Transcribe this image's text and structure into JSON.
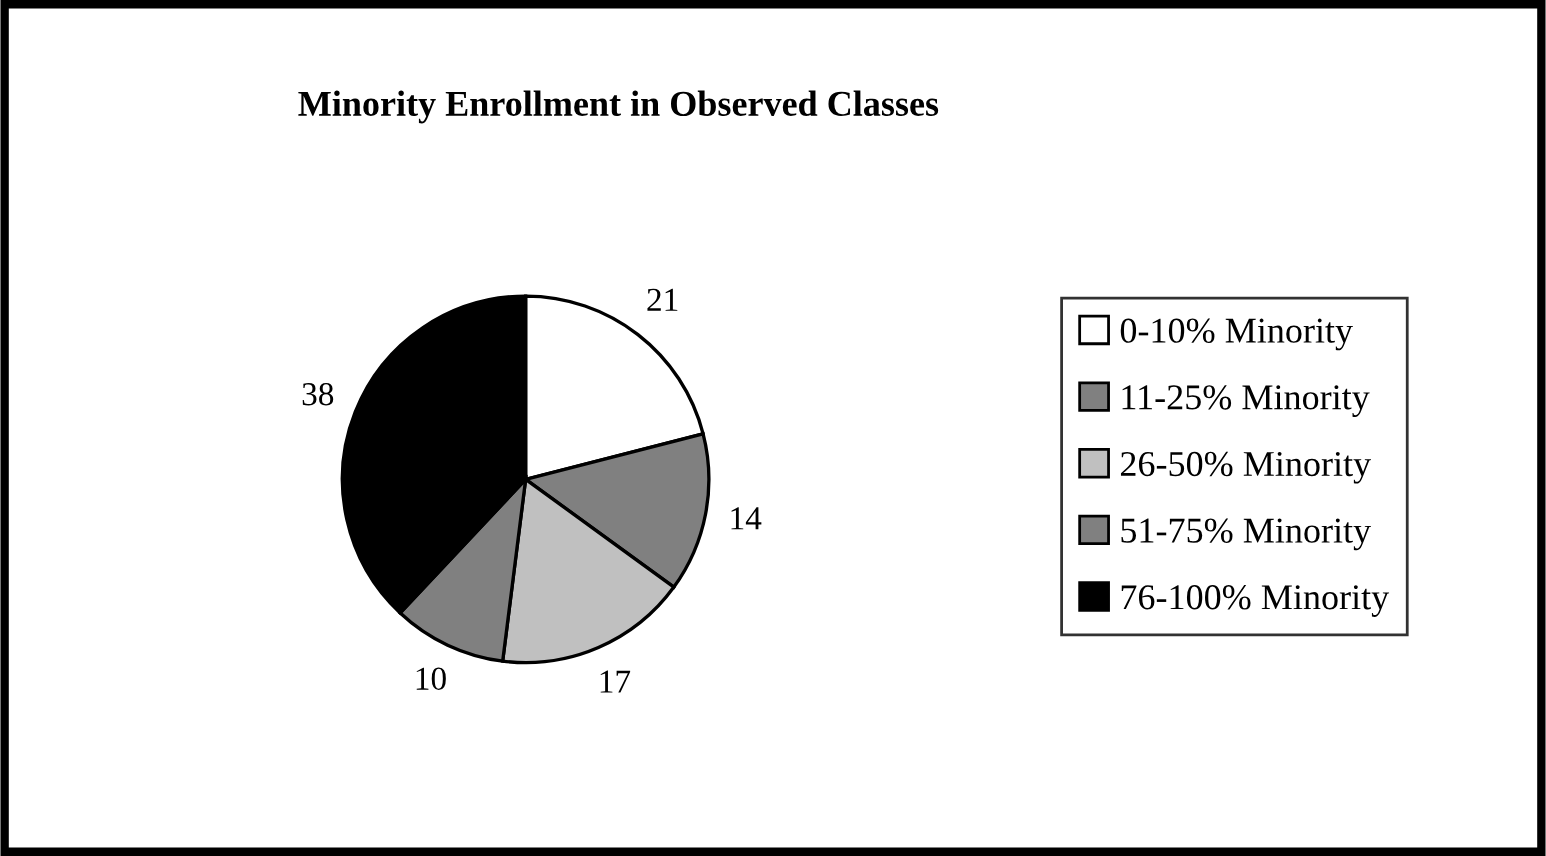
{
  "chart_data": {
    "type": "pie",
    "title": "Minority Enrollment in Observed Classes",
    "categories": [
      "0-10% Minority",
      "11-25% Minority",
      "26-50% Minority",
      "51-75% Minority",
      "76-100% Minority"
    ],
    "values": [
      21,
      14,
      17,
      10,
      38
    ],
    "colors": [
      "#ffffff",
      "#808080",
      "#c0c0c0",
      "#808080",
      "#000000"
    ],
    "data_labels": true,
    "legend": "right"
  }
}
